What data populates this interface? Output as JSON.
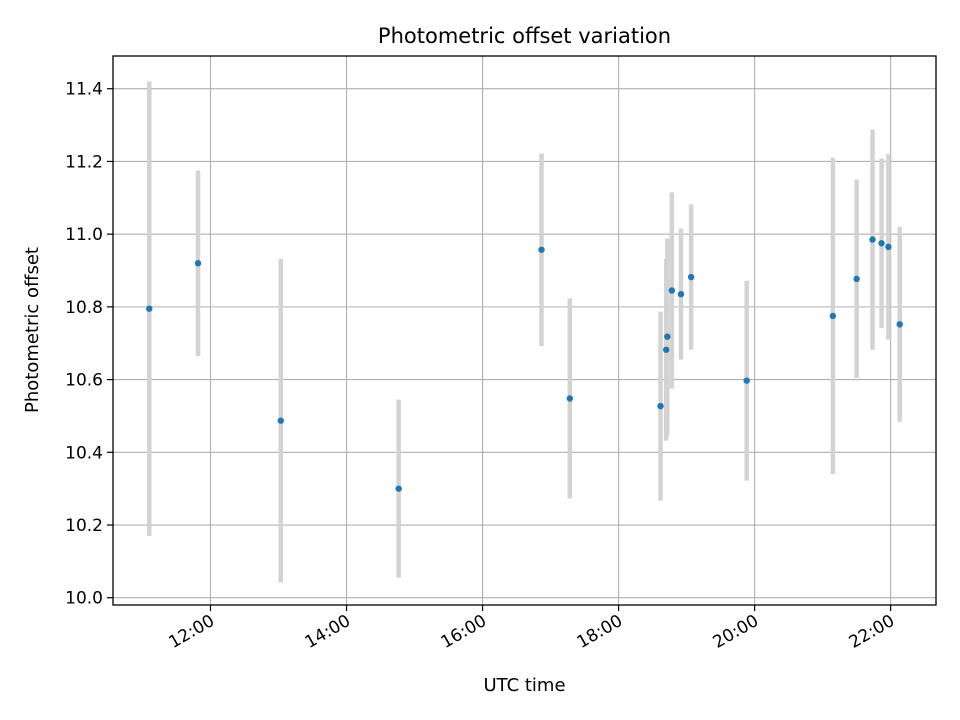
{
  "chart_data": {
    "type": "scatter",
    "title": "Photometric offset variation",
    "xlabel": "UTC time",
    "ylabel": "Photometric offset",
    "x_is_time": true,
    "xlim": [
      "10:34",
      "22:40"
    ],
    "ylim": [
      9.98,
      11.49
    ],
    "xticks": [
      "12:00",
      "14:00",
      "16:00",
      "18:00",
      "20:00",
      "22:00"
    ],
    "yticks": [
      10.0,
      10.2,
      10.4,
      10.6,
      10.8,
      11.0,
      11.2,
      11.4
    ],
    "ytick_labels": [
      "10.0",
      "10.2",
      "10.4",
      "10.6",
      "10.8",
      "11.0",
      "11.2",
      "11.4"
    ],
    "grid": true,
    "colors": {
      "marker": "#1f77b4",
      "errorbar": "#d3d3d3",
      "grid": "#b0b0b0"
    },
    "series": [
      {
        "x": [
          "11:06",
          "11:49",
          "13:02",
          "14:46",
          "16:52",
          "17:17",
          "18:37",
          "18:42",
          "18:43",
          "18:47",
          "18:55",
          "19:04",
          "19:53",
          "21:09",
          "21:30",
          "21:44",
          "21:52",
          "21:58",
          "22:08"
        ],
        "y": [
          10.795,
          10.92,
          10.487,
          10.3,
          10.957,
          10.548,
          10.527,
          10.682,
          10.718,
          10.845,
          10.835,
          10.882,
          10.597,
          10.775,
          10.877,
          10.985,
          10.975,
          10.965,
          10.752
        ],
        "err": [
          0.625,
          0.255,
          0.445,
          0.245,
          0.265,
          0.275,
          0.26,
          0.25,
          0.27,
          0.27,
          0.18,
          0.2,
          0.275,
          0.435,
          0.273,
          0.303,
          0.233,
          0.255,
          0.268
        ]
      }
    ]
  }
}
